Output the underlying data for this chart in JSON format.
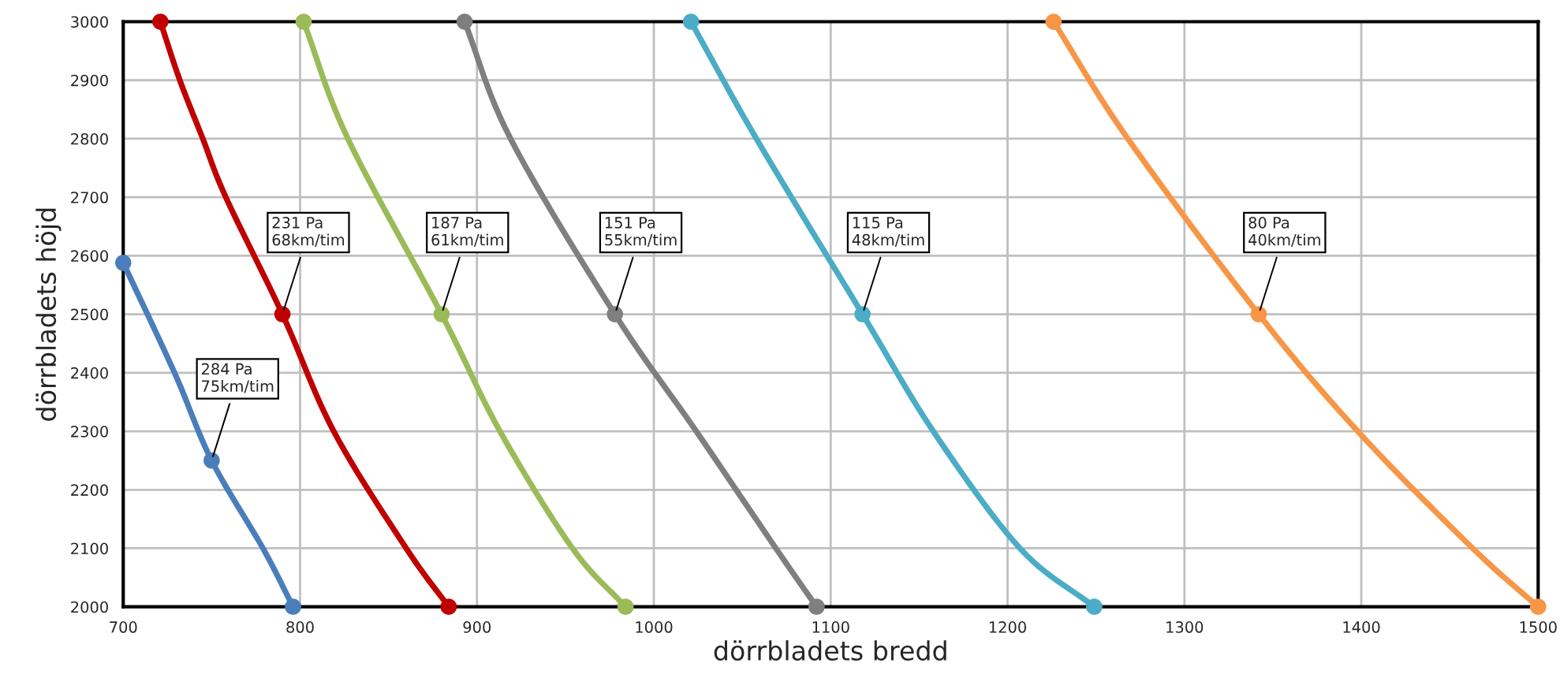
{
  "chart_data": {
    "type": "line",
    "xlabel": "dörrbladets bredd",
    "ylabel": "dörrbladets höjd",
    "xlim": [
      700,
      1500
    ],
    "ylim": [
      2000,
      3000
    ],
    "xticks": [
      700,
      800,
      900,
      1000,
      1100,
      1200,
      1300,
      1400,
      1500
    ],
    "yticks": [
      2000,
      2100,
      2200,
      2300,
      2400,
      2500,
      2600,
      2700,
      2800,
      2900,
      3000
    ],
    "grid": true,
    "line_style": "solid",
    "series": [
      {
        "color": "#4a7ebb",
        "marker": "none",
        "x": [
          700,
          729,
          750,
          779,
          796
        ],
        "values": [
          2588,
          2400,
          2250,
          2100,
          2000
        ]
      },
      {
        "color": "#c00000",
        "marker": "none",
        "x": [
          721,
          732,
          745,
          758,
          790,
          819,
          860,
          884
        ],
        "values": [
          3000,
          2900,
          2800,
          2700,
          2500,
          2300,
          2100,
          2000
        ]
      },
      {
        "color": "#9bbb59",
        "marker": "none",
        "x": [
          802,
          827,
          880,
          913,
          954,
          984
        ],
        "values": [
          3000,
          2800,
          2500,
          2300,
          2100,
          2000
        ]
      },
      {
        "color": "#7f7f7f",
        "marker": "none",
        "x": [
          893,
          919,
          978,
          1024,
          1069,
          1092
        ],
        "values": [
          3000,
          2800,
          2500,
          2300,
          2100,
          2000
        ]
      },
      {
        "color": "#4bacc6",
        "marker": "none",
        "x": [
          1021,
          1058,
          1118,
          1158,
          1207,
          1249
        ],
        "values": [
          3000,
          2800,
          2500,
          2300,
          2100,
          2000
        ]
      },
      {
        "color": "#f79646",
        "marker": "none",
        "x": [
          1226,
          1268,
          1342,
          1398,
          1463,
          1500
        ],
        "values": [
          3000,
          2800,
          2500,
          2300,
          2100,
          2000
        ]
      },
      {
        "type": "scatter",
        "color": "#4a7ebb",
        "marker": "circle",
        "x": [
          700,
          750,
          796
        ],
        "values": [
          2588,
          2250,
          2000
        ]
      },
      {
        "type": "scatter",
        "color": "#c00000",
        "marker": "circle",
        "x": [
          721,
          790,
          884
        ],
        "values": [
          3000,
          2500,
          2000
        ]
      },
      {
        "type": "scatter",
        "color": "#9bbb59",
        "marker": "circle",
        "x": [
          802,
          880,
          984
        ],
        "values": [
          3000,
          2500,
          2000
        ]
      },
      {
        "type": "scatter",
        "color": "#7f7f7f",
        "marker": "circle",
        "x": [
          893,
          978,
          1092
        ],
        "values": [
          3000,
          2500,
          2000
        ]
      },
      {
        "type": "scatter",
        "color": "#4bacc6",
        "marker": "circle",
        "x": [
          1021,
          1118,
          1249
        ],
        "values": [
          3000,
          2500,
          2000
        ]
      },
      {
        "type": "scatter",
        "color": "#f79646",
        "marker": "circle",
        "x": [
          1226,
          1342,
          1500
        ],
        "values": [
          3000,
          2500,
          2000
        ]
      }
    ],
    "annotations": [
      {
        "text": "284 Pa\n75km/tim",
        "x": 750,
        "y": 2250
      },
      {
        "text": "231 Pa\n68km/tim",
        "x": 790,
        "y": 2500
      },
      {
        "text": "187 Pa\n61km/tim",
        "x": 880,
        "y": 2500
      },
      {
        "text": "151 Pa\n55km/tim",
        "x": 978,
        "y": 2500
      },
      {
        "text": "115 Pa\n48km/tim",
        "x": 1118,
        "y": 2500
      },
      {
        "text": "80 Pa\n40km/tim",
        "x": 1342,
        "y": 2500
      }
    ]
  }
}
